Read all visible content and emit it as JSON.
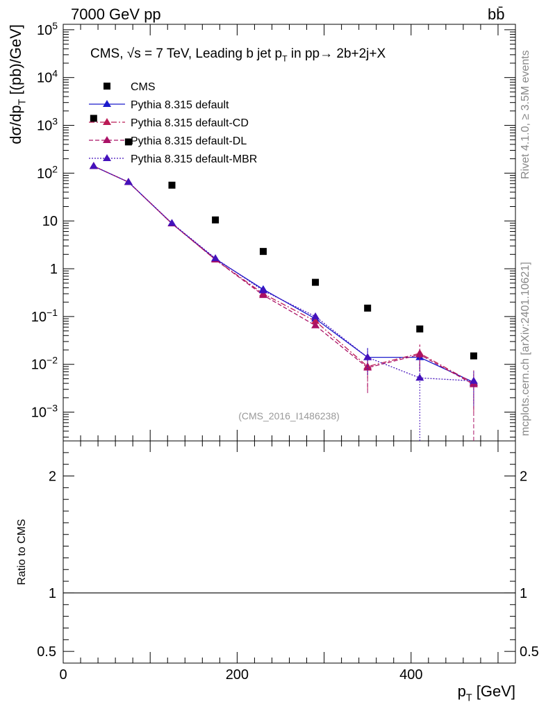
{
  "header": {
    "energy_label": "7000 GeV pp",
    "process_label": "bb̄"
  },
  "side_labels": {
    "rivet": "Rivet 4.1.0, ≥ 3.5M events",
    "mcplots": "mcplots.cern.ch [arXiv:2401.10621]"
  },
  "chart_data": {
    "type": "scatter",
    "title": "CMS, √s = 7 TeV, Leading b jet p_T in pp→ 2b+2j+X",
    "analysis_id": "(CMS_2016_I1486238)",
    "xlabel": "p_T [GeV]",
    "ylabel": "dσ/dp_T [(pb)/GeV]",
    "ratio_ylabel": "Ratio to CMS",
    "xlim": [
      0,
      520
    ],
    "ylim": [
      0.00025,
      130000
    ],
    "yscale": "log",
    "ratio_ylim": [
      0.4,
      2.3
    ],
    "x_ticks": [
      "0",
      "200",
      "400"
    ],
    "y_ticks": [
      "10^5",
      "10^4",
      "10^3",
      "10^2",
      "10",
      "1",
      "10^-1",
      "10^-2",
      "10^-3"
    ],
    "ratio_ticks": [
      "2",
      "1",
      "0.5"
    ],
    "x": [
      35,
      75,
      125,
      175,
      230,
      290,
      350,
      410,
      472
    ],
    "series": [
      {
        "name": "CMS",
        "color": "#000000",
        "marker": "square",
        "line": "none",
        "values": [
          1400,
          450,
          56,
          10.5,
          2.3,
          0.52,
          0.15,
          0.055,
          0.015
        ]
      },
      {
        "name": "Pythia 8.315 default",
        "color": "#1a1acc",
        "marker": "triangle",
        "line": "solid",
        "values": [
          140,
          65,
          8.8,
          1.6,
          0.37,
          0.09,
          0.014,
          0.014,
          0.0042
        ],
        "errors": [
          0,
          0,
          0,
          0,
          0,
          0,
          0.008,
          0.007,
          0.003
        ]
      },
      {
        "name": "Pythia 8.315 default-CD",
        "color": "#bb1a55",
        "marker": "triangle",
        "line": "dashdot",
        "values": [
          140,
          65,
          8.8,
          1.55,
          0.3,
          0.08,
          0.009,
          0.017,
          0.004
        ],
        "errors": [
          0,
          0,
          0,
          0,
          0,
          0,
          0.006,
          0.009,
          0.003
        ]
      },
      {
        "name": "Pythia 8.315 default-DL",
        "color": "#aa1166",
        "marker": "triangle",
        "line": "dashed",
        "values": [
          140,
          65,
          8.8,
          1.55,
          0.28,
          0.065,
          0.0085,
          0.016,
          0.0038
        ],
        "errors": [
          0,
          0,
          0,
          0,
          0,
          0,
          0.006,
          0.009,
          0.0037
        ]
      },
      {
        "name": "Pythia 8.315 default-MBR",
        "color": "#4411bb",
        "marker": "triangle",
        "line": "dotted",
        "values": [
          140,
          65,
          9,
          1.65,
          0.35,
          0.1,
          0.014,
          0.0052,
          0.0045
        ],
        "errors": [
          0,
          0,
          0,
          0,
          0,
          0,
          0.008,
          0.0052,
          0.003
        ]
      }
    ],
    "ratio_reference": 1
  }
}
